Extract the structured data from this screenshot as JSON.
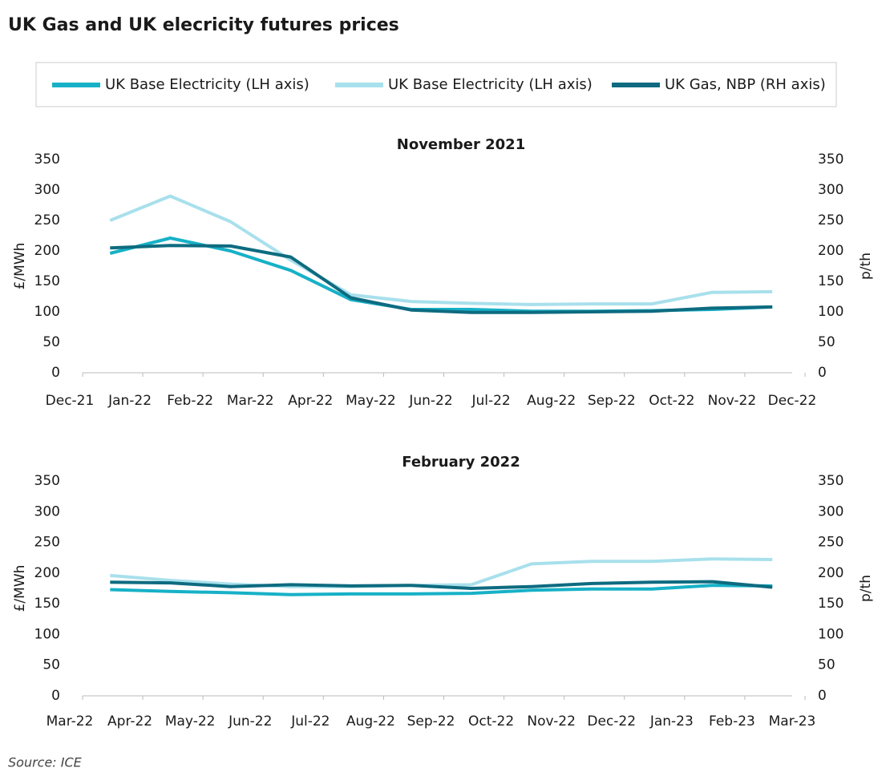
{
  "title": "UK Gas and UK elecricity futures prices",
  "source": "Source: ICE",
  "chart_data": [
    {
      "type": "line",
      "subtitle": "November 2021",
      "ylabel": "£/MWh",
      "y2label": "p/th",
      "xlim": [
        0,
        12
      ],
      "xticks": [
        {
          "value": 0,
          "label": "Dec-21"
        },
        {
          "value": 1,
          "label": "Jan-22"
        },
        {
          "value": 2,
          "label": "Feb-22"
        },
        {
          "value": 3,
          "label": "Mar-22"
        },
        {
          "value": 4,
          "label": "Apr-22"
        },
        {
          "value": 5,
          "label": "May-22"
        },
        {
          "value": 6,
          "label": "Jun-22"
        },
        {
          "value": 7,
          "label": "Jul-22"
        },
        {
          "value": 8,
          "label": "Aug-22"
        },
        {
          "value": 9,
          "label": "Sep-22"
        },
        {
          "value": 10,
          "label": "Oct-22"
        },
        {
          "value": 11,
          "label": "Nov-22"
        },
        {
          "value": 12,
          "label": "Dec-22"
        }
      ],
      "x": [
        0.67,
        1.67,
        2.67,
        3.67,
        4.67,
        5.67,
        6.67,
        7.67,
        8.67,
        9.67,
        10.67,
        11.67
      ],
      "ylim": [
        0,
        350
      ],
      "yticks": [
        0,
        50,
        100,
        150,
        200,
        250,
        300,
        350
      ],
      "y2lim": [
        0,
        350
      ],
      "y2ticks": [
        0,
        50,
        100,
        150,
        200,
        250,
        300,
        350
      ],
      "series": [
        {
          "name": "UK Base Electricity (LH axis)",
          "color": "#17b1c7",
          "values": [
            196,
            221,
            200,
            168,
            120,
            104,
            104,
            101,
            101,
            102,
            104,
            108
          ]
        },
        {
          "name": "UK Base Electricity (LH axis)",
          "color": "#a8e0ec",
          "values": [
            250,
            290,
            248,
            185,
            128,
            117,
            114,
            112,
            113,
            113,
            132,
            133
          ]
        },
        {
          "name": "UK Gas, NBP (RH axis)",
          "color": "#0e6b80",
          "axis": "y2",
          "values": [
            205,
            209,
            208,
            190,
            123,
            103,
            99,
            99,
            100,
            101,
            106,
            108
          ]
        }
      ]
    },
    {
      "type": "line",
      "subtitle": "February 2022",
      "ylabel": "£/MWh",
      "y2label": "p/th",
      "xlim": [
        0,
        12
      ],
      "xticks": [
        {
          "value": 0,
          "label": "Mar-22"
        },
        {
          "value": 1,
          "label": "Apr-22"
        },
        {
          "value": 2,
          "label": "May-22"
        },
        {
          "value": 3,
          "label": "Jun-22"
        },
        {
          "value": 4,
          "label": "Jul-22"
        },
        {
          "value": 5,
          "label": "Aug-22"
        },
        {
          "value": 6,
          "label": "Sep-22"
        },
        {
          "value": 7,
          "label": "Oct-22"
        },
        {
          "value": 8,
          "label": "Nov-22"
        },
        {
          "value": 9,
          "label": "Dec-22"
        },
        {
          "value": 10,
          "label": "Jan-23"
        },
        {
          "value": 11,
          "label": "Feb-23"
        },
        {
          "value": 12,
          "label": "Mar-23"
        }
      ],
      "x": [
        0.67,
        1.67,
        2.67,
        3.67,
        4.67,
        5.67,
        6.67,
        7.67,
        8.67,
        9.67,
        10.67,
        11.67
      ],
      "ylim": [
        0,
        350
      ],
      "yticks": [
        0,
        50,
        100,
        150,
        200,
        250,
        300,
        350
      ],
      "y2lim": [
        0,
        350
      ],
      "y2ticks": [
        0,
        50,
        100,
        150,
        200,
        250,
        300,
        350
      ],
      "series": [
        {
          "name": "UK Base Electricity (LH axis)",
          "color": "#17b1c7",
          "values": [
            173,
            170,
            168,
            165,
            166,
            166,
            167,
            172,
            174,
            174,
            180,
            179
          ]
        },
        {
          "name": "UK Base Electricity (LH axis)",
          "color": "#a8e0ec",
          "values": [
            196,
            188,
            182,
            178,
            178,
            180,
            181,
            215,
            219,
            219,
            223,
            222
          ]
        },
        {
          "name": "UK Gas, NBP (RH axis)",
          "color": "#0e6b80",
          "axis": "y2",
          "values": [
            185,
            184,
            178,
            181,
            179,
            180,
            175,
            178,
            183,
            185,
            186,
            177
          ]
        }
      ]
    }
  ]
}
